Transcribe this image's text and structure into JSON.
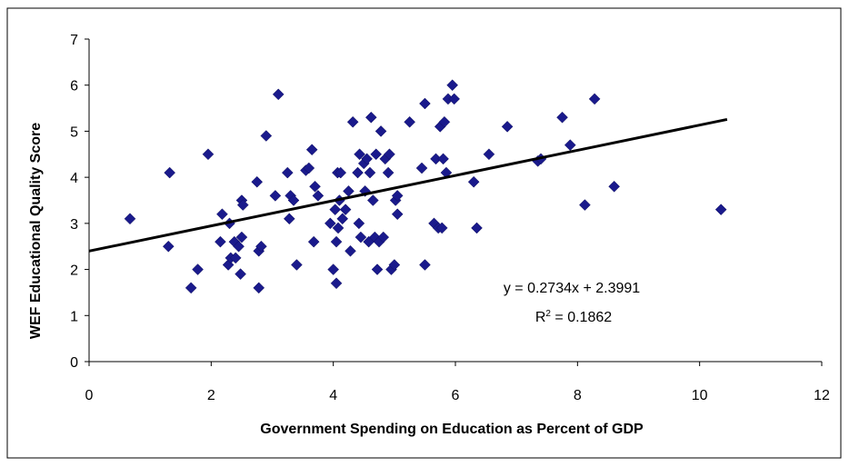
{
  "chart_data": {
    "type": "scatter",
    "title": "",
    "xlabel": "Government Spending on Education as Percent of GDP",
    "ylabel": "WEF Educational Quality Score",
    "xlim": [
      0,
      12
    ],
    "ylim": [
      0,
      7
    ],
    "x_ticks": [
      "0",
      "2",
      "4",
      "6",
      "8",
      "10",
      "12"
    ],
    "y_ticks": [
      "0",
      "1",
      "2",
      "3",
      "4",
      "5",
      "6",
      "7"
    ],
    "grid": false,
    "legend": "none",
    "marker": "diamond",
    "marker_color": "#1a1a8c",
    "trendline": {
      "slope": 0.2734,
      "intercept": 2.3991,
      "x_range": [
        0,
        10.45
      ],
      "color": "#000000"
    },
    "annotations": {
      "equation": "y = 0.2734x + 2.3991",
      "r2_prefix": "R",
      "r2_sup": "2",
      "r2_suffix": " = 0.1862"
    },
    "points": [
      [
        0.67,
        3.1
      ],
      [
        1.3,
        2.5
      ],
      [
        1.32,
        4.1
      ],
      [
        1.67,
        1.6
      ],
      [
        1.78,
        2.0
      ],
      [
        1.95,
        4.5
      ],
      [
        2.15,
        2.6
      ],
      [
        2.18,
        3.2
      ],
      [
        2.28,
        2.1
      ],
      [
        2.3,
        3.0
      ],
      [
        2.32,
        2.25
      ],
      [
        2.38,
        2.6
      ],
      [
        2.4,
        2.25
      ],
      [
        2.45,
        2.5
      ],
      [
        2.48,
        1.9
      ],
      [
        2.5,
        2.7
      ],
      [
        2.5,
        3.5
      ],
      [
        2.52,
        3.4
      ],
      [
        2.75,
        3.9
      ],
      [
        2.78,
        1.6
      ],
      [
        2.78,
        2.4
      ],
      [
        2.82,
        2.5
      ],
      [
        2.9,
        4.9
      ],
      [
        3.05,
        3.6
      ],
      [
        3.1,
        5.8
      ],
      [
        3.25,
        4.1
      ],
      [
        3.28,
        3.1
      ],
      [
        3.3,
        3.6
      ],
      [
        3.35,
        3.5
      ],
      [
        3.4,
        2.1
      ],
      [
        3.55,
        4.15
      ],
      [
        3.6,
        4.2
      ],
      [
        3.65,
        4.6
      ],
      [
        3.68,
        2.6
      ],
      [
        3.7,
        3.8
      ],
      [
        3.75,
        3.6
      ],
      [
        3.95,
        3.0
      ],
      [
        4.0,
        2.0
      ],
      [
        4.03,
        3.3
      ],
      [
        4.05,
        1.7
      ],
      [
        4.05,
        2.6
      ],
      [
        4.07,
        4.1
      ],
      [
        4.08,
        2.9
      ],
      [
        4.1,
        3.5
      ],
      [
        4.12,
        4.1
      ],
      [
        4.15,
        3.1
      ],
      [
        4.2,
        3.3
      ],
      [
        4.25,
        3.7
      ],
      [
        4.28,
        2.4
      ],
      [
        4.32,
        5.2
      ],
      [
        4.4,
        4.1
      ],
      [
        4.42,
        3.0
      ],
      [
        4.43,
        4.5
      ],
      [
        4.45,
        2.7
      ],
      [
        4.5,
        4.3
      ],
      [
        4.52,
        3.7
      ],
      [
        4.55,
        4.4
      ],
      [
        4.58,
        2.6
      ],
      [
        4.6,
        4.1
      ],
      [
        4.62,
        5.3
      ],
      [
        4.65,
        3.5
      ],
      [
        4.68,
        2.7
      ],
      [
        4.7,
        4.5
      ],
      [
        4.72,
        2.0
      ],
      [
        4.75,
        2.6
      ],
      [
        4.78,
        5.0
      ],
      [
        4.82,
        2.7
      ],
      [
        4.85,
        4.4
      ],
      [
        4.9,
        4.1
      ],
      [
        4.92,
        4.5
      ],
      [
        4.95,
        2.0
      ],
      [
        5.0,
        2.1
      ],
      [
        5.02,
        3.5
      ],
      [
        5.05,
        3.6
      ],
      [
        5.05,
        3.2
      ],
      [
        5.25,
        5.2
      ],
      [
        5.45,
        4.2
      ],
      [
        5.5,
        2.1
      ],
      [
        5.5,
        5.6
      ],
      [
        5.65,
        3.0
      ],
      [
        5.68,
        4.4
      ],
      [
        5.72,
        2.9
      ],
      [
        5.75,
        5.1
      ],
      [
        5.78,
        2.9
      ],
      [
        5.8,
        4.4
      ],
      [
        5.82,
        5.2
      ],
      [
        5.85,
        4.1
      ],
      [
        5.88,
        5.7
      ],
      [
        5.95,
        6.0
      ],
      [
        5.98,
        5.7
      ],
      [
        6.3,
        3.9
      ],
      [
        6.35,
        2.9
      ],
      [
        6.55,
        4.5
      ],
      [
        6.85,
        5.1
      ],
      [
        7.35,
        4.35
      ],
      [
        7.4,
        4.4
      ],
      [
        7.75,
        5.3
      ],
      [
        7.88,
        4.7
      ],
      [
        8.12,
        3.4
      ],
      [
        8.28,
        5.7
      ],
      [
        8.6,
        3.8
      ],
      [
        10.35,
        3.3
      ]
    ]
  }
}
